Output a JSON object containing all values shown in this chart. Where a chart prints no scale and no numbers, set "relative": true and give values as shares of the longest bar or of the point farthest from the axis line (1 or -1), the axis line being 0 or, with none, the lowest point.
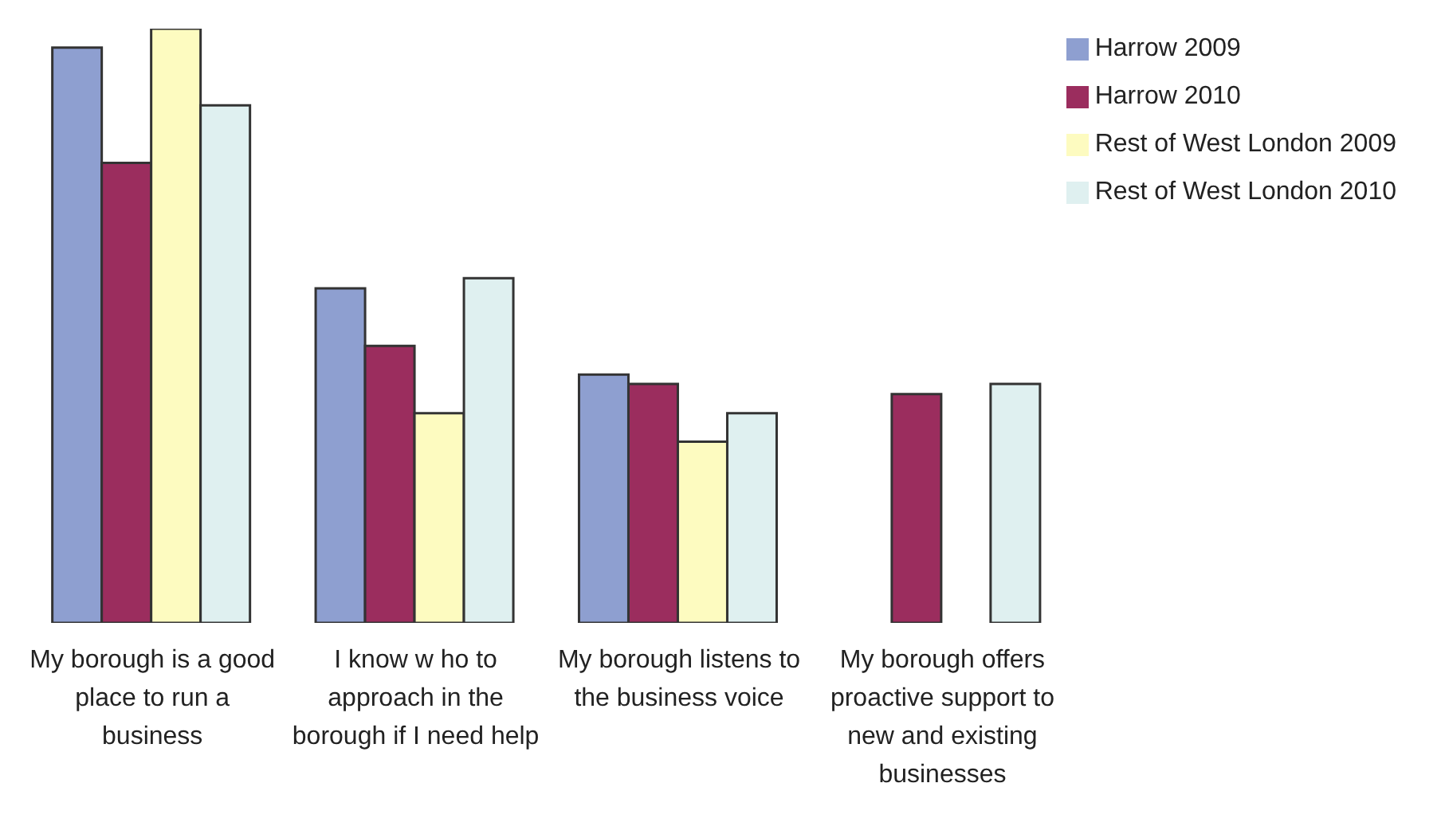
{
  "chart_data": {
    "type": "bar",
    "relative": true,
    "legend": "top right",
    "grid": false,
    "categories": [
      "My borough is a good place to run a business",
      "I know w ho to approach in the borough if I need help",
      "My borough listens to the business voice",
      "My borough offers proactive support to new and existing businesses"
    ],
    "series": [
      {
        "name": "Harrow 2009",
        "color": "#8e9fd0",
        "values": [
          0.968,
          0.563,
          0.418,
          null
        ]
      },
      {
        "name": "Harrow 2010",
        "color": "#9b2d5e",
        "values": [
          0.774,
          0.466,
          0.402,
          0.385
        ]
      },
      {
        "name": "Rest of West London 2009",
        "color": "#fdfbc0",
        "values": [
          1,
          0.353,
          0.305,
          null
        ]
      },
      {
        "name": "Rest of West London 2010",
        "color": "#dff0f0",
        "values": [
          0.871,
          0.58,
          0.353,
          0.402
        ]
      }
    ]
  }
}
